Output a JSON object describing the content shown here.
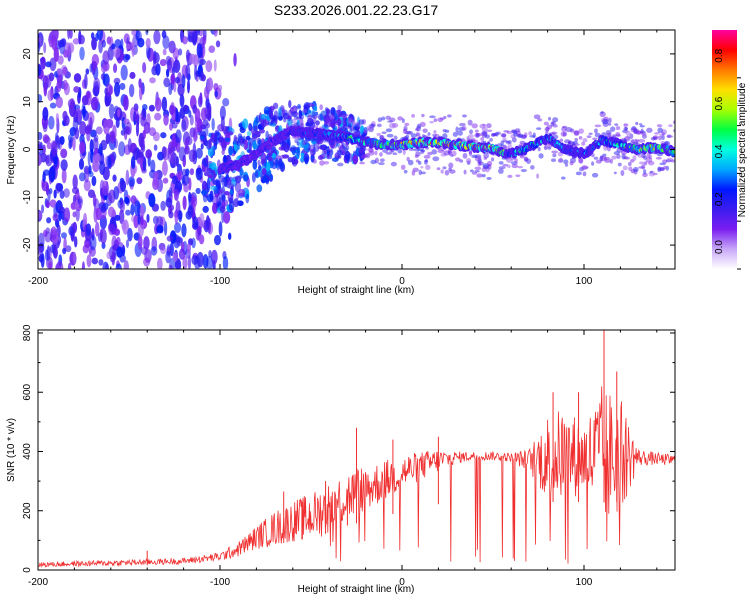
{
  "title": "S233.2026.001.22.23.G17",
  "chart_data": [
    {
      "type": "heatmap",
      "title": "S233.2026.001.22.23.G17",
      "xlabel": "Height of straight line (km)",
      "ylabel": "Frequency (Hz)",
      "xlim": [
        -200,
        150
      ],
      "ylim": [
        -25,
        25
      ],
      "xticks": [
        -200,
        -100,
        0,
        100
      ],
      "yticks": [
        -20,
        -10,
        0,
        10,
        20
      ],
      "colorbar": {
        "label": "Normalized spectral amplitude",
        "range": [
          0,
          1
        ],
        "ticks": [
          0.0,
          0.2,
          0.4,
          0.6,
          0.8
        ],
        "tick_labels": [
          "0.0",
          "0.2",
          "0.4",
          "0.6",
          "0.8"
        ],
        "colors": [
          "#ffffff",
          "#c8a8f8",
          "#7a1ef0",
          "#3c1cf0",
          "#0018ff",
          "#00a8ff",
          "#00ffe0",
          "#00ff40",
          "#a8ff00",
          "#ffe000",
          "#ff7800",
          "#ff0000",
          "#ff00a0"
        ]
      },
      "ridge": {
        "x": [
          -100,
          -90,
          -80,
          -70,
          -60,
          -50,
          -40,
          -30,
          -20,
          -10,
          0,
          10,
          20,
          30,
          40,
          50,
          55,
          60,
          70,
          80,
          90,
          100,
          110,
          120,
          130,
          140,
          150
        ],
        "y": [
          -4,
          -3,
          -1,
          2,
          4,
          3.5,
          3,
          2.5,
          1.5,
          1,
          1,
          1.5,
          1.5,
          1,
          0.5,
          0.2,
          -0.5,
          -1,
          0.5,
          2.5,
          0,
          -1,
          2,
          1,
          0,
          0.5,
          -0.5
        ],
        "amplitude": [
          0.35,
          0.3,
          0.3,
          0.3,
          0.35,
          0.4,
          0.5,
          0.6,
          0.65,
          0.75,
          0.8,
          0.9,
          0.92,
          0.9,
          0.88,
          0.9,
          0.7,
          0.5,
          0.6,
          0.55,
          0.45,
          0.4,
          0.55,
          0.6,
          0.75,
          0.8,
          0.7
        ]
      }
    },
    {
      "type": "line",
      "xlabel": "Height of straight line (km)",
      "ylabel": "SNR (10 * v/v)",
      "xlim": [
        -200,
        150
      ],
      "ylim": [
        0,
        810
      ],
      "xticks": [
        -200,
        -100,
        0,
        100
      ],
      "yticks": [
        0,
        200,
        400,
        600,
        800
      ],
      "color": "#f03030",
      "envelope": {
        "x": [
          -200,
          -150,
          -120,
          -100,
          -90,
          -80,
          -70,
          -60,
          -50,
          -40,
          -30,
          -20,
          -10,
          0,
          10,
          20,
          30,
          40,
          50,
          60,
          70,
          80,
          90,
          100,
          110,
          120,
          130,
          140,
          150
        ],
        "mean": [
          18,
          25,
          30,
          45,
          70,
          110,
          140,
          165,
          180,
          210,
          250,
          275,
          300,
          330,
          350,
          370,
          380,
          385,
          385,
          380,
          370,
          380,
          390,
          380,
          380,
          385,
          380,
          375,
          370
        ],
        "spread": [
          8,
          10,
          10,
          15,
          25,
          40,
          60,
          70,
          80,
          90,
          90,
          80,
          70,
          60,
          50,
          40,
          20,
          15,
          15,
          15,
          40,
          150,
          160,
          120,
          250,
          200,
          30,
          20,
          20
        ]
      },
      "peaks": [
        {
          "x": -140,
          "y": 65
        },
        {
          "x": -65,
          "y": 265
        },
        {
          "x": -55,
          "y": 230
        },
        {
          "x": -42,
          "y": 300
        },
        {
          "x": -30,
          "y": 270
        },
        {
          "x": -25,
          "y": 480
        },
        {
          "x": -5,
          "y": 440
        },
        {
          "x": 20,
          "y": 450
        },
        {
          "x": 83,
          "y": 600
        },
        {
          "x": 97,
          "y": 600
        },
        {
          "x": 111,
          "y": 810
        },
        {
          "x": 118,
          "y": 670
        }
      ]
    }
  ]
}
